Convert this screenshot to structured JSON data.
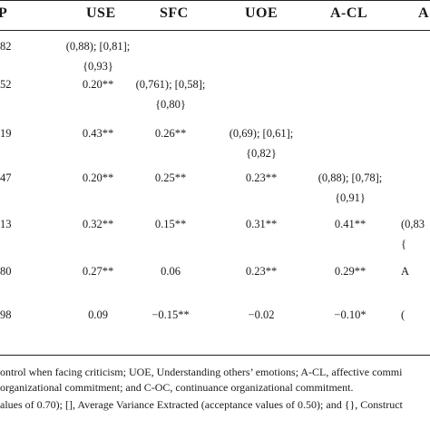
{
  "header": [
    "P",
    "USE",
    "SFC",
    "UOE",
    "A-CL",
    "A"
  ],
  "rows": [
    {
      "left": "82",
      "cells": [
        [
          "(0,88); [0,81];",
          "{0,93}"
        ],
        [],
        [],
        [],
        []
      ]
    },
    {
      "left": "52",
      "cells": [
        [
          "0.20**"
        ],
        [
          "(0,761); [0,58];",
          "{0,80}"
        ],
        [],
        [],
        []
      ]
    },
    {
      "left": "19",
      "cells": [
        [
          "0.43**"
        ],
        [
          "0.26**"
        ],
        [
          "(0,69); [0,61];",
          "{0,82}"
        ],
        [],
        []
      ]
    },
    {
      "left": "47",
      "cells": [
        [
          "0.20**"
        ],
        [
          "0.25**"
        ],
        [
          "0.23**"
        ],
        [
          "(0,88); [0,78];",
          "{0,91}"
        ],
        []
      ]
    },
    {
      "left": "13",
      "cells": [
        [
          "0.32**"
        ],
        [
          "0.15**"
        ],
        [
          "0.31**"
        ],
        [
          "0.41**"
        ],
        [
          "(0,83",
          "{"
        ]
      ]
    },
    {
      "left": "80",
      "cells": [
        [
          "0.27**"
        ],
        [
          "0.06"
        ],
        [
          "0.23**"
        ],
        [
          "0.29**"
        ],
        [
          "A"
        ]
      ]
    },
    {
      "left": "98",
      "cells": [
        [
          "0.09"
        ],
        [
          "−0.15**"
        ],
        [
          "−0.02"
        ],
        [
          "−0.10*"
        ],
        [
          "("
        ]
      ]
    }
  ],
  "footnotes": [
    "ontrol when facing criticism; UOE, Understanding others’ emotions; A-CL, affective commi",
    "organizational commitment; and C-OC, continuance organizational commitment.",
    "alues of 0.70); [], Average Variance Extracted (acceptance values of 0.50); and {}, Construct"
  ]
}
